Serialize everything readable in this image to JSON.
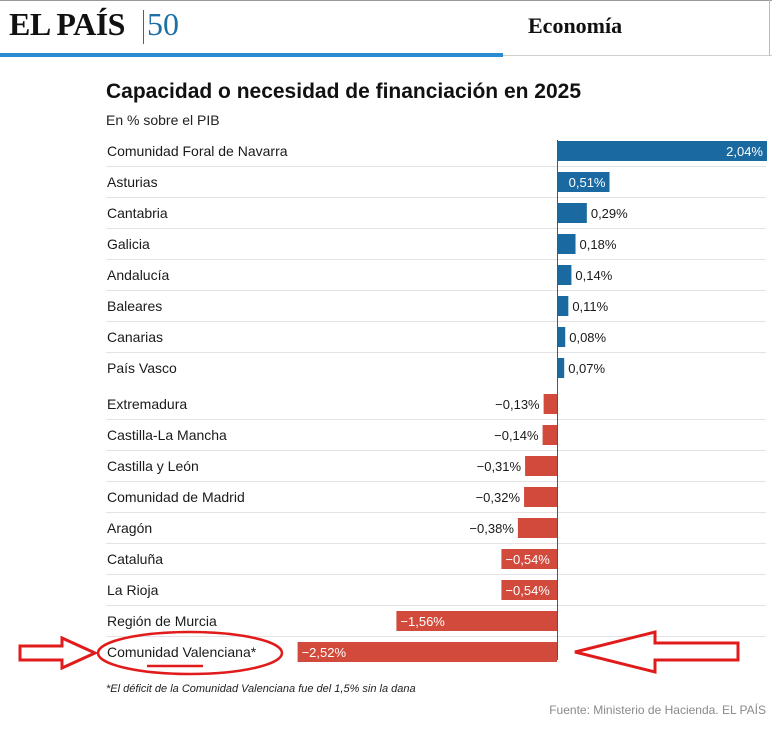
{
  "header": {
    "logo_text": "EL PAÍS",
    "badge_text": "50",
    "section": "Economía",
    "accent_color": "#2a8bd0"
  },
  "chart_data": {
    "type": "bar",
    "orientation": "horizontal",
    "title": "Capacidad o necesidad de financiación en 2025",
    "subtitle": "En % sobre el PIB",
    "categories": [
      "Comunidad Foral de Navarra",
      "Asturias",
      "Cantabria",
      "Galicia",
      "Andalucía",
      "Baleares",
      "Canarias",
      "País Vasco",
      "Extremadura",
      "Castilla-La Mancha",
      "Castilla y León",
      "Comunidad de Madrid",
      "Aragón",
      "Cataluña",
      "La Rioja",
      "Región de Murcia",
      "Comunidad Valenciana*"
    ],
    "values": [
      2.04,
      0.51,
      0.29,
      0.18,
      0.14,
      0.11,
      0.08,
      0.07,
      -0.13,
      -0.14,
      -0.31,
      -0.32,
      -0.38,
      -0.54,
      -0.54,
      -1.56,
      -2.52
    ],
    "value_labels": [
      "2,04%",
      "0,51%",
      "0,29%",
      "0,18%",
      "0,14%",
      "0,11%",
      "0,08%",
      "0,07%",
      "−0,13%",
      "−0,14%",
      "−0,31%",
      "−0,32%",
      "−0,38%",
      "−0,54%",
      "−0,54%",
      "−1,56%",
      "−2,52%"
    ],
    "colors": {
      "positive": "#1a6aa1",
      "negative": "#d24a3c"
    },
    "footnote": "*El déficit de la Comunidad Valenciana fue del 1,5% sin la dana",
    "source": "Fuente: Ministerio de Hacienda. EL PAÍS",
    "highlighted_category": "Comunidad Valenciana*",
    "annotation_color": "#e11b1b"
  }
}
